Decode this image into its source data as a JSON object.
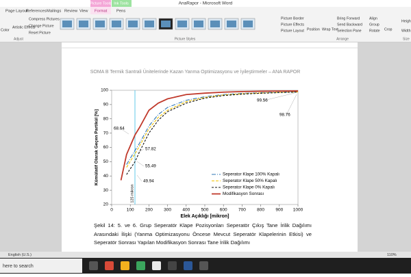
{
  "window": {
    "title": "AnaRapor - Microsoft Word"
  },
  "contextual": [
    "Picture Tools",
    "Ink Tools"
  ],
  "tabs": [
    "Page Layout",
    "References",
    "Mailings",
    "Review",
    "View",
    "Format",
    "Pens"
  ],
  "ribbon": {
    "items": [
      "Color",
      "Artistic Effects",
      "Compress Pictures",
      "Change Picture",
      "Reset Picture",
      "Picture Border",
      "Picture Effects",
      "Picture Layout",
      "Position",
      "Wrap Text",
      "Bring Forward",
      "Send Backward",
      "Selection Pane",
      "Align",
      "Group",
      "Rotate",
      "Crop",
      "Height:",
      "Width:"
    ],
    "groups": [
      "Adjust",
      "Picture Styles",
      "Arrange",
      "Size"
    ]
  },
  "document": {
    "header": "SOMA B Termik Santrali Ünitelerinde Kazan Yanma Optimizasyonu ve İyileştirmeler – ANA RAPOR",
    "caption": "Şekil 14: 5. ve 6. Grup Seperatör Klape Pozisyonları Seperatör Çıkış Tane İrilik Dağılımı Arasındaki İlişki (Yanma Optimizasyonu Öncese Mevcut Seperatör Klapelerinin Etkisi) ve Seperatör Sonrası Yapılan Modifikasyon Sonrası Tane İrilik Dağılımı"
  },
  "chart_data": {
    "type": "line",
    "xlabel": "Elek Açıklığı [mikron]",
    "ylabel": "Kümülatif Olarak Geçen Partikül [%]",
    "x": [
      50,
      80,
      125,
      150,
      200,
      250,
      300,
      400,
      500,
      600,
      700,
      800,
      900,
      1000
    ],
    "series": [
      {
        "name": "Seperator Klape 100% Kapalı",
        "color": "#2e75b6",
        "dash": "6 2 1 2",
        "values": [
          null,
          48,
          57.82,
          63,
          75,
          83,
          88,
          93,
          95.5,
          97,
          97.8,
          98.3,
          98.6,
          98.9
        ]
      },
      {
        "name": "Seperator Klape 50% Kapalı",
        "color": "#f2c200",
        "dash": "4 2",
        "values": [
          null,
          46,
          55.49,
          61,
          73,
          81,
          86,
          92,
          95,
          96.7,
          97.6,
          98.1,
          98.5,
          98.8
        ]
      },
      {
        "name": "Seperator Klape 0% Kapalı",
        "color": "#111111",
        "dash": "3 2",
        "values": [
          null,
          41,
          49.94,
          57,
          70,
          79,
          85,
          91,
          94.5,
          96.3,
          97.3,
          97.9,
          98.4,
          98.76
        ]
      },
      {
        "name": "Modifikasyon Sonrası",
        "color": "#c0392b",
        "dash": "",
        "values": [
          37,
          55,
          68.64,
          74,
          86,
          91,
          94,
          97,
          98,
          98.7,
          99.1,
          99.3,
          99.45,
          99.56
        ]
      }
    ],
    "annotations": [
      "68.64",
      "57.82",
      "55.49",
      "49.94",
      "99.56",
      "98.76"
    ],
    "vline": {
      "x": 125,
      "label": "125 mikron",
      "color": "#4fc3e8"
    },
    "xlim": [
      0,
      1000
    ],
    "xticks": [
      0,
      100,
      200,
      300,
      400,
      500,
      600,
      700,
      800,
      900,
      1000
    ],
    "ylim": [
      20,
      100
    ],
    "yticks": [
      20,
      30,
      40,
      50,
      60,
      70,
      80,
      90,
      100
    ]
  },
  "status_bar": [
    "English (U.S.)",
    "110%"
  ],
  "taskbar": {
    "search": "here to search"
  }
}
